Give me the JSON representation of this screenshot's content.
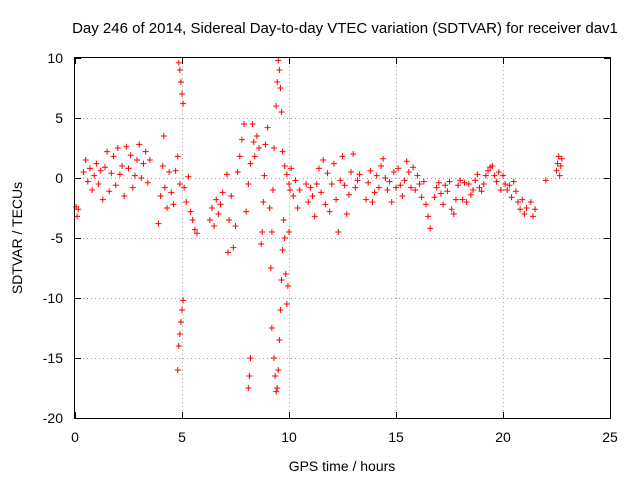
{
  "chart_data": {
    "type": "scatter",
    "title": "Day 246 of 2014, Sidereal Day-to-day VTEC variation (SDTVAR) for receiver dav1",
    "xlabel": "GPS time / hours",
    "ylabel": "SDTVAR / TECUs",
    "xlim": [
      0,
      25
    ],
    "ylim": [
      -20,
      10
    ],
    "xticks": [
      0,
      5,
      10,
      15,
      20,
      25
    ],
    "yticks": [
      -20,
      -15,
      -10,
      -5,
      0,
      5,
      10
    ],
    "grid": true,
    "marker": "plus",
    "series": [
      {
        "name": "SDTVAR",
        "color": "#ff0000",
        "points": [
          [
            0.05,
            -2.4
          ],
          [
            0.1,
            -3.2
          ],
          [
            0.15,
            -2.6
          ],
          [
            0.4,
            0.5
          ],
          [
            0.5,
            1.5
          ],
          [
            0.6,
            -0.3
          ],
          [
            0.7,
            0.8
          ],
          [
            0.8,
            -1.0
          ],
          [
            0.9,
            0.2
          ],
          [
            1.0,
            1.2
          ],
          [
            1.1,
            -0.5
          ],
          [
            1.2,
            0.6
          ],
          [
            1.3,
            -1.8
          ],
          [
            1.4,
            0.9
          ],
          [
            1.5,
            2.2
          ],
          [
            1.6,
            -1.1
          ],
          [
            1.7,
            0.4
          ],
          [
            1.8,
            1.8
          ],
          [
            1.9,
            -0.6
          ],
          [
            2.0,
            2.5
          ],
          [
            2.1,
            0.3
          ],
          [
            2.2,
            1.0
          ],
          [
            2.3,
            -1.5
          ],
          [
            2.4,
            2.6
          ],
          [
            2.5,
            0.8
          ],
          [
            2.6,
            1.9
          ],
          [
            2.7,
            -0.8
          ],
          [
            2.8,
            0.2
          ],
          [
            2.9,
            1.5
          ],
          [
            3.0,
            2.8
          ],
          [
            3.1,
            0.0
          ],
          [
            3.2,
            1.2
          ],
          [
            3.3,
            2.2
          ],
          [
            3.4,
            -0.4
          ],
          [
            3.5,
            1.5
          ],
          [
            3.9,
            -3.8
          ],
          [
            4.0,
            -1.5
          ],
          [
            4.1,
            1.0
          ],
          [
            4.15,
            3.5
          ],
          [
            4.2,
            -0.8
          ],
          [
            4.3,
            -2.5
          ],
          [
            4.4,
            0.5
          ],
          [
            4.5,
            -1.2
          ],
          [
            4.6,
            -2.2
          ],
          [
            4.7,
            0.6
          ],
          [
            4.8,
            1.8
          ],
          [
            4.9,
            -0.5
          ],
          [
            4.8,
            -16.0
          ],
          [
            4.85,
            -14.0
          ],
          [
            4.9,
            -13.0
          ],
          [
            4.95,
            -12.0
          ],
          [
            5.0,
            -11.0
          ],
          [
            5.05,
            -10.2
          ],
          [
            4.85,
            9.6
          ],
          [
            4.9,
            9.0
          ],
          [
            4.95,
            8.0
          ],
          [
            5.0,
            7.0
          ],
          [
            5.05,
            6.2
          ],
          [
            5.1,
            -0.8
          ],
          [
            5.2,
            -2.0
          ],
          [
            5.3,
            0.1
          ],
          [
            5.4,
            -2.8
          ],
          [
            5.5,
            -3.5
          ],
          [
            5.6,
            -4.3
          ],
          [
            5.7,
            -4.6
          ],
          [
            6.3,
            -3.5
          ],
          [
            6.4,
            -2.5
          ],
          [
            6.5,
            -4.0
          ],
          [
            6.6,
            -1.8
          ],
          [
            6.7,
            -3.0
          ],
          [
            6.8,
            -2.2
          ],
          [
            6.9,
            -1.2
          ],
          [
            7.1,
            0.3
          ],
          [
            7.15,
            -6.2
          ],
          [
            7.2,
            -3.5
          ],
          [
            7.3,
            -1.5
          ],
          [
            7.4,
            -5.8
          ],
          [
            7.5,
            -4.0
          ],
          [
            7.6,
            0.5
          ],
          [
            7.7,
            1.8
          ],
          [
            7.8,
            3.2
          ],
          [
            7.9,
            4.5
          ],
          [
            8.0,
            -2.8
          ],
          [
            8.1,
            -0.5
          ],
          [
            8.2,
            1.2
          ],
          [
            8.1,
            -17.5
          ],
          [
            8.15,
            -16.5
          ],
          [
            8.2,
            -15.0
          ],
          [
            8.3,
            4.5
          ],
          [
            8.35,
            3.0
          ],
          [
            8.4,
            1.8
          ],
          [
            8.5,
            3.5
          ],
          [
            8.6,
            2.5
          ],
          [
            8.7,
            -5.5
          ],
          [
            8.75,
            -4.5
          ],
          [
            8.8,
            -2.0
          ],
          [
            8.85,
            0.2
          ],
          [
            8.9,
            2.8
          ],
          [
            9.0,
            4.2
          ],
          [
            9.1,
            -2.5
          ],
          [
            9.15,
            -7.5
          ],
          [
            9.2,
            -4.5
          ],
          [
            9.25,
            -1.0
          ],
          [
            9.3,
            2.5
          ],
          [
            9.4,
            6.0
          ],
          [
            9.45,
            8.0
          ],
          [
            9.5,
            9.8
          ],
          [
            9.55,
            9.0
          ],
          [
            9.6,
            7.5
          ],
          [
            9.65,
            5.5
          ],
          [
            9.2,
            -12.5
          ],
          [
            9.3,
            -15.0
          ],
          [
            9.35,
            -16.5
          ],
          [
            9.4,
            -17.8
          ],
          [
            9.45,
            -17.5
          ],
          [
            9.5,
            -16.0
          ],
          [
            9.55,
            -13.5
          ],
          [
            9.6,
            -11.0
          ],
          [
            9.65,
            -8.5
          ],
          [
            9.7,
            -6.0
          ],
          [
            9.75,
            -3.5
          ],
          [
            9.8,
            -5.0
          ],
          [
            9.85,
            -8.0
          ],
          [
            9.9,
            -10.5
          ],
          [
            9.95,
            -9.0
          ],
          [
            10.0,
            -4.5
          ],
          [
            10.05,
            -1.0
          ],
          [
            9.7,
            2.2
          ],
          [
            9.8,
            1.0
          ],
          [
            9.9,
            0.3
          ],
          [
            10.0,
            -0.5
          ],
          [
            10.1,
            0.8
          ],
          [
            10.2,
            -1.5
          ],
          [
            10.3,
            -0.2
          ],
          [
            10.4,
            -2.5
          ],
          [
            10.5,
            -1.0
          ],
          [
            10.8,
            -0.5
          ],
          [
            10.9,
            -2.0
          ],
          [
            11.0,
            -0.8
          ],
          [
            11.1,
            -1.5
          ],
          [
            11.2,
            -3.2
          ],
          [
            11.3,
            -0.5
          ],
          [
            11.4,
            0.8
          ],
          [
            11.5,
            -1.2
          ],
          [
            11.6,
            1.5
          ],
          [
            11.7,
            -2.2
          ],
          [
            11.8,
            0.4
          ],
          [
            11.9,
            -2.8
          ],
          [
            12.0,
            -0.5
          ],
          [
            12.1,
            1.2
          ],
          [
            12.2,
            -1.8
          ],
          [
            12.3,
            -4.5
          ],
          [
            12.4,
            -0.2
          ],
          [
            12.5,
            1.8
          ],
          [
            12.6,
            -0.6
          ],
          [
            12.7,
            -3.0
          ],
          [
            12.8,
            -1.4
          ],
          [
            12.9,
            0.5
          ],
          [
            13.0,
            2.0
          ],
          [
            13.1,
            -0.8
          ],
          [
            13.2,
            -0.2
          ],
          [
            13.3,
            0.3
          ],
          [
            13.6,
            -1.8
          ],
          [
            13.7,
            -0.4
          ],
          [
            13.8,
            0.6
          ],
          [
            13.9,
            -2.0
          ],
          [
            14.0,
            -1.2
          ],
          [
            14.1,
            0.2
          ],
          [
            14.2,
            -0.8
          ],
          [
            14.3,
            1.0
          ],
          [
            14.4,
            1.6
          ],
          [
            14.5,
            0.0
          ],
          [
            14.6,
            -1.0
          ],
          [
            14.7,
            -0.3
          ],
          [
            14.8,
            -2.0
          ],
          [
            14.9,
            0.5
          ],
          [
            15.0,
            -0.8
          ],
          [
            15.1,
            0.8
          ],
          [
            15.2,
            -0.6
          ],
          [
            15.3,
            -1.5
          ],
          [
            15.4,
            -0.2
          ],
          [
            15.5,
            1.4
          ],
          [
            15.6,
            0.5
          ],
          [
            15.7,
            -0.8
          ],
          [
            15.8,
            0.9
          ],
          [
            15.9,
            -1.0
          ],
          [
            16.0,
            0.2
          ],
          [
            16.1,
            -0.5
          ],
          [
            16.2,
            -1.6
          ],
          [
            16.3,
            -0.3
          ],
          [
            16.4,
            -2.2
          ],
          [
            16.5,
            -3.2
          ],
          [
            16.6,
            -4.2
          ],
          [
            16.8,
            -1.6
          ],
          [
            16.9,
            -0.8
          ],
          [
            17.0,
            -0.4
          ],
          [
            17.1,
            -1.3
          ],
          [
            17.2,
            -2.2
          ],
          [
            17.3,
            -0.6
          ],
          [
            17.4,
            -1.1
          ],
          [
            17.5,
            -0.3
          ],
          [
            17.6,
            -2.6
          ],
          [
            17.7,
            -3.0
          ],
          [
            17.8,
            -1.8
          ],
          [
            17.9,
            -0.6
          ],
          [
            18.0,
            -0.2
          ],
          [
            18.1,
            -1.8
          ],
          [
            18.2,
            -0.4
          ],
          [
            18.3,
            -2.0
          ],
          [
            18.4,
            -0.5
          ],
          [
            18.5,
            -1.4
          ],
          [
            18.6,
            -1.0
          ],
          [
            18.7,
            -0.2
          ],
          [
            18.8,
            0.3
          ],
          [
            18.9,
            -0.8
          ],
          [
            19.0,
            -1.1
          ],
          [
            19.1,
            -0.5
          ],
          [
            19.2,
            0.2
          ],
          [
            19.3,
            0.6
          ],
          [
            19.4,
            0.9
          ],
          [
            19.5,
            1.0
          ],
          [
            19.6,
            0.2
          ],
          [
            19.7,
            -0.3
          ],
          [
            19.8,
            0.5
          ],
          [
            19.9,
            -1.0
          ],
          [
            20.0,
            0.2
          ],
          [
            20.1,
            -0.5
          ],
          [
            20.2,
            -1.0
          ],
          [
            20.3,
            -0.6
          ],
          [
            20.4,
            -1.6
          ],
          [
            20.5,
            -0.3
          ],
          [
            20.6,
            -1.1
          ],
          [
            20.7,
            -2.0
          ],
          [
            20.8,
            -2.6
          ],
          [
            20.9,
            -1.8
          ],
          [
            21.0,
            -3.0
          ],
          [
            21.1,
            -2.5
          ],
          [
            21.3,
            -2.0
          ],
          [
            21.4,
            -3.2
          ],
          [
            21.5,
            -2.6
          ],
          [
            22.0,
            -0.2
          ],
          [
            22.5,
            0.6
          ],
          [
            22.55,
            1.2
          ],
          [
            22.6,
            1.8
          ],
          [
            22.65,
            0.2
          ],
          [
            22.7,
            1.0
          ],
          [
            22.75,
            1.6
          ]
        ]
      }
    ]
  }
}
